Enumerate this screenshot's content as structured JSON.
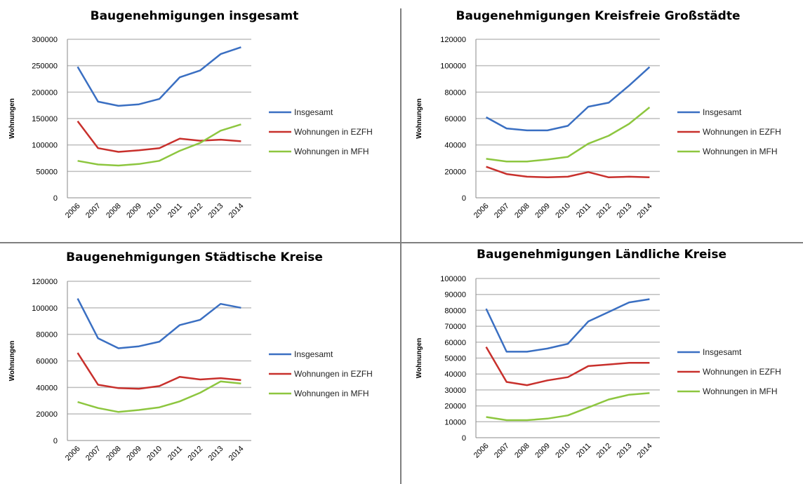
{
  "colors": {
    "insgesamt": "#3A6FC2",
    "ezfh": "#C8302C",
    "mfh": "#8DC63F",
    "grid": "#BEBEBE",
    "divider": "#7F7F7F"
  },
  "chart_data": [
    {
      "type": "line",
      "title": "Baugenehmigungen insgesamt",
      "xlabel": "",
      "ylabel": "Wohnungen",
      "x": [
        "2006",
        "2007",
        "2008",
        "2009",
        "2010",
        "2011",
        "2012",
        "2013",
        "2014"
      ],
      "ylim": [
        0,
        300000
      ],
      "yticks": [
        0,
        50000,
        100000,
        150000,
        200000,
        250000,
        300000
      ],
      "grid": true,
      "legend": "right",
      "series": [
        {
          "name": "Insgesamt",
          "values": [
            248000,
            182000,
            174000,
            177000,
            187000,
            228000,
            241000,
            272000,
            285000
          ]
        },
        {
          "name": "Wohnungen in EZFH",
          "values": [
            145000,
            94000,
            87000,
            90000,
            94000,
            112000,
            108000,
            110000,
            107000
          ]
        },
        {
          "name": "Wohnungen in MFH",
          "values": [
            70000,
            63000,
            61000,
            64000,
            70000,
            89000,
            104000,
            127000,
            139000
          ]
        }
      ]
    },
    {
      "type": "line",
      "title": "Baugenehmigungen Kreisfreie Großstädte",
      "xlabel": "",
      "ylabel": "Wohnungen",
      "x": [
        "2006",
        "2007",
        "2008",
        "2009",
        "2010",
        "2011",
        "2012",
        "2013",
        "2014"
      ],
      "ylim": [
        0,
        120000
      ],
      "yticks": [
        0,
        20000,
        40000,
        60000,
        80000,
        100000,
        120000
      ],
      "grid": true,
      "legend": "right",
      "series": [
        {
          "name": "Insgesamt",
          "values": [
            61000,
            52500,
            51000,
            51000,
            54500,
            69000,
            72000,
            85000,
            99000
          ]
        },
        {
          "name": "Wohnungen in EZFH",
          "values": [
            23500,
            18000,
            16000,
            15500,
            16000,
            19500,
            15500,
            16000,
            15500
          ]
        },
        {
          "name": "Wohnungen in MFH",
          "values": [
            29500,
            27500,
            27500,
            29000,
            31000,
            41000,
            47000,
            56000,
            68500
          ]
        }
      ]
    },
    {
      "type": "line",
      "title": "Baugenehmigungen Städtische Kreise",
      "xlabel": "",
      "ylabel": "Wohnungen",
      "x": [
        "2006",
        "2007",
        "2008",
        "2009",
        "2010",
        "2011",
        "2012",
        "2013",
        "2014"
      ],
      "ylim": [
        0,
        120000
      ],
      "yticks": [
        0,
        20000,
        40000,
        60000,
        80000,
        100000,
        120000
      ],
      "grid": true,
      "legend": "right",
      "series": [
        {
          "name": "Insgesamt",
          "values": [
            107000,
            77000,
            69500,
            71000,
            74500,
            87000,
            91000,
            103000,
            100000
          ]
        },
        {
          "name": "Wohnungen in EZFH",
          "values": [
            66000,
            42000,
            39500,
            39000,
            41000,
            48000,
            46000,
            47000,
            45500
          ]
        },
        {
          "name": "Wohnungen in MFH",
          "values": [
            29000,
            24500,
            21500,
            23000,
            25000,
            29500,
            36000,
            44500,
            43000
          ]
        }
      ]
    },
    {
      "type": "line",
      "title": "Baugenehmigungen Ländliche Kreise",
      "xlabel": "",
      "ylabel": "Wohnungen",
      "x": [
        "2006",
        "2007",
        "2008",
        "2009",
        "2010",
        "2011",
        "2012",
        "2013",
        "2014"
      ],
      "ylim": [
        0,
        100000
      ],
      "yticks": [
        0,
        10000,
        20000,
        30000,
        40000,
        50000,
        60000,
        70000,
        80000,
        90000,
        100000
      ],
      "grid": true,
      "legend": "right",
      "series": [
        {
          "name": "Insgesamt",
          "values": [
            81000,
            54000,
            54000,
            56000,
            59000,
            73000,
            79000,
            85000,
            87000
          ]
        },
        {
          "name": "Wohnungen in EZFH",
          "values": [
            57000,
            35000,
            33000,
            36000,
            38000,
            45000,
            46000,
            47000,
            47000
          ]
        },
        {
          "name": "Wohnungen in MFH",
          "values": [
            13000,
            11000,
            11000,
            12000,
            14000,
            19000,
            24000,
            27000,
            28000
          ]
        }
      ]
    }
  ]
}
